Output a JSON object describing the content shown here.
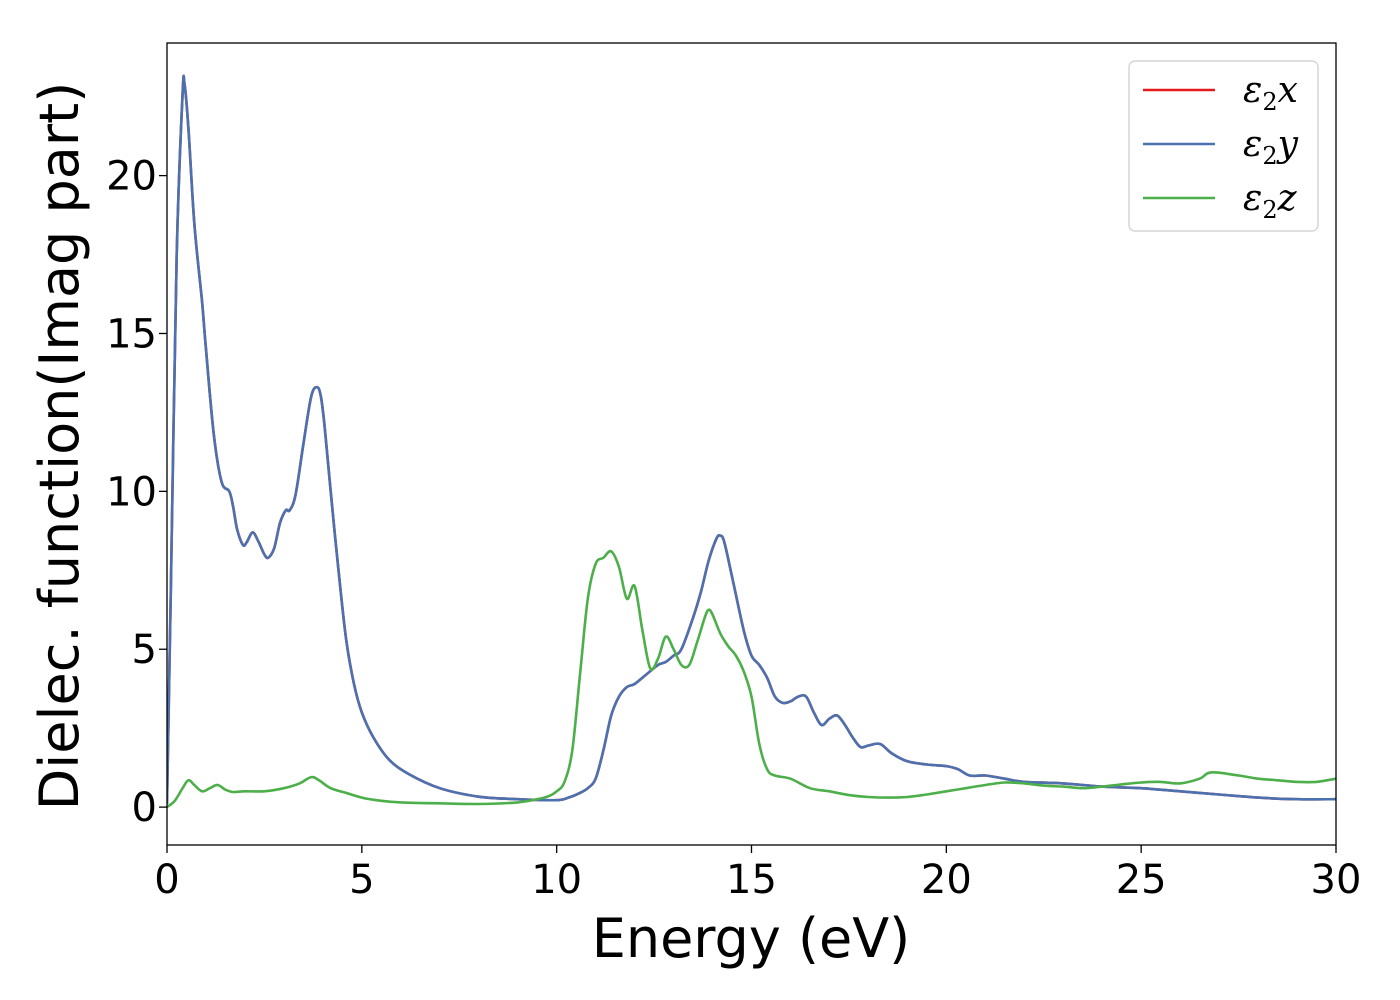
{
  "chart_data": {
    "type": "line",
    "title": "",
    "xlabel": "Energy (eV)",
    "ylabel": "Dielec. function(Imag part)",
    "xlim": [
      0,
      30
    ],
    "ylim": [
      -1.2,
      24.2
    ],
    "xticks": [
      0,
      5,
      10,
      15,
      20,
      25,
      30
    ],
    "yticks": [
      0,
      5,
      10,
      15,
      20
    ],
    "grid": false,
    "legend_position": "top-right",
    "series": [
      {
        "name": "ε2x",
        "color": "#e41a1c",
        "x": [
          0,
          0.1,
          0.25,
          0.4,
          0.45,
          0.55,
          0.7,
          0.9,
          1.0,
          1.2,
          1.4,
          1.6,
          1.7,
          1.8,
          1.95,
          2.05,
          2.2,
          2.35,
          2.5,
          2.6,
          2.75,
          2.9,
          3.05,
          3.15,
          3.3,
          3.5,
          3.7,
          3.85,
          3.95,
          4.05,
          4.2,
          4.4,
          4.6,
          4.8,
          5.0,
          5.3,
          5.7,
          6.2,
          7.0,
          8.0,
          9.0,
          10.0,
          10.3,
          10.6,
          10.8,
          11.0,
          11.2,
          11.4,
          11.6,
          11.8,
          12.0,
          12.3,
          12.6,
          12.8,
          13.0,
          13.2,
          13.5,
          13.7,
          13.9,
          14.1,
          14.2,
          14.3,
          14.5,
          14.8,
          15.0,
          15.2,
          15.4,
          15.6,
          15.8,
          16.0,
          16.2,
          16.4,
          16.6,
          16.8,
          17.0,
          17.2,
          17.4,
          17.6,
          17.8,
          18.0,
          18.3,
          18.6,
          19.0,
          19.5,
          20.0,
          20.3,
          20.6,
          21.0,
          21.5,
          22.0,
          23.0,
          24.0,
          25.0,
          26.0,
          27.0,
          28.0,
          29.0,
          30.0
        ],
        "y": [
          0.1,
          7.0,
          17.5,
          22.6,
          22.9,
          21.5,
          18.5,
          16.0,
          14.5,
          11.8,
          10.3,
          10.0,
          9.5,
          8.8,
          8.3,
          8.4,
          8.7,
          8.4,
          8.0,
          7.9,
          8.2,
          9.0,
          9.4,
          9.4,
          9.9,
          11.5,
          13.0,
          13.3,
          13.0,
          12.0,
          10.0,
          7.5,
          5.3,
          3.9,
          3.0,
          2.2,
          1.5,
          1.05,
          0.6,
          0.33,
          0.25,
          0.22,
          0.3,
          0.45,
          0.6,
          0.9,
          1.8,
          2.9,
          3.5,
          3.8,
          3.9,
          4.2,
          4.5,
          4.6,
          4.8,
          5.0,
          6.0,
          6.8,
          7.8,
          8.5,
          8.6,
          8.4,
          7.3,
          5.6,
          4.8,
          4.5,
          4.1,
          3.5,
          3.3,
          3.35,
          3.5,
          3.5,
          3.0,
          2.6,
          2.8,
          2.9,
          2.6,
          2.2,
          1.9,
          1.95,
          2.0,
          1.7,
          1.45,
          1.35,
          1.3,
          1.2,
          1.0,
          1.0,
          0.9,
          0.8,
          0.75,
          0.65,
          0.6,
          0.5,
          0.4,
          0.3,
          0.25,
          0.25
        ]
      },
      {
        "name": "ε2y",
        "color": "#4a72b0",
        "x": [
          0,
          0.1,
          0.25,
          0.4,
          0.45,
          0.55,
          0.7,
          0.9,
          1.0,
          1.2,
          1.4,
          1.6,
          1.7,
          1.8,
          1.95,
          2.05,
          2.2,
          2.35,
          2.5,
          2.6,
          2.75,
          2.9,
          3.05,
          3.15,
          3.3,
          3.5,
          3.7,
          3.85,
          3.95,
          4.05,
          4.2,
          4.4,
          4.6,
          4.8,
          5.0,
          5.3,
          5.7,
          6.2,
          7.0,
          8.0,
          9.0,
          10.0,
          10.3,
          10.6,
          10.8,
          11.0,
          11.2,
          11.4,
          11.6,
          11.8,
          12.0,
          12.3,
          12.6,
          12.8,
          13.0,
          13.2,
          13.5,
          13.7,
          13.9,
          14.1,
          14.2,
          14.3,
          14.5,
          14.8,
          15.0,
          15.2,
          15.4,
          15.6,
          15.8,
          16.0,
          16.2,
          16.4,
          16.6,
          16.8,
          17.0,
          17.2,
          17.4,
          17.6,
          17.8,
          18.0,
          18.3,
          18.6,
          19.0,
          19.5,
          20.0,
          20.3,
          20.6,
          21.0,
          21.5,
          22.0,
          23.0,
          24.0,
          25.0,
          26.0,
          27.0,
          28.0,
          29.0,
          30.0
        ],
        "y": [
          0.1,
          7.0,
          17.5,
          22.6,
          22.9,
          21.5,
          18.5,
          16.0,
          14.5,
          11.8,
          10.3,
          10.0,
          9.5,
          8.8,
          8.3,
          8.4,
          8.7,
          8.4,
          8.0,
          7.9,
          8.2,
          9.0,
          9.4,
          9.4,
          9.9,
          11.5,
          13.0,
          13.3,
          13.0,
          12.0,
          10.0,
          7.5,
          5.3,
          3.9,
          3.0,
          2.2,
          1.5,
          1.05,
          0.6,
          0.33,
          0.25,
          0.22,
          0.3,
          0.45,
          0.6,
          0.9,
          1.8,
          2.9,
          3.5,
          3.8,
          3.9,
          4.2,
          4.5,
          4.6,
          4.8,
          5.0,
          6.0,
          6.8,
          7.8,
          8.5,
          8.6,
          8.4,
          7.3,
          5.6,
          4.8,
          4.5,
          4.1,
          3.5,
          3.3,
          3.35,
          3.5,
          3.5,
          3.0,
          2.6,
          2.8,
          2.9,
          2.6,
          2.2,
          1.9,
          1.95,
          2.0,
          1.7,
          1.45,
          1.35,
          1.3,
          1.2,
          1.0,
          1.0,
          0.9,
          0.8,
          0.75,
          0.65,
          0.6,
          0.5,
          0.4,
          0.3,
          0.25,
          0.25
        ]
      },
      {
        "name": "ε2z",
        "color": "#4daf4a",
        "x": [
          0,
          0.2,
          0.4,
          0.55,
          0.7,
          0.9,
          1.1,
          1.3,
          1.5,
          1.7,
          2.0,
          2.5,
          3.0,
          3.4,
          3.7,
          3.9,
          4.2,
          4.6,
          5.0,
          5.5,
          6.0,
          7.0,
          8.0,
          9.0,
          9.5,
          9.8,
          10.0,
          10.2,
          10.4,
          10.6,
          10.8,
          11.0,
          11.2,
          11.4,
          11.6,
          11.8,
          12.0,
          12.2,
          12.4,
          12.6,
          12.8,
          13.0,
          13.2,
          13.4,
          13.6,
          13.8,
          13.9,
          14.0,
          14.2,
          14.4,
          14.6,
          14.8,
          15.0,
          15.2,
          15.4,
          15.6,
          16.0,
          16.5,
          17.0,
          17.5,
          18.0,
          18.5,
          19.0,
          19.5,
          20.0,
          20.5,
          21.0,
          21.5,
          22.0,
          22.5,
          23.0,
          23.5,
          24.0,
          24.5,
          25.0,
          25.5,
          26.0,
          26.5,
          26.8,
          27.5,
          28.0,
          28.5,
          29.0,
          29.5,
          30.0
        ],
        "y": [
          0.0,
          0.2,
          0.6,
          0.85,
          0.7,
          0.5,
          0.6,
          0.7,
          0.55,
          0.48,
          0.5,
          0.5,
          0.6,
          0.75,
          0.95,
          0.85,
          0.6,
          0.45,
          0.3,
          0.2,
          0.15,
          0.12,
          0.1,
          0.15,
          0.25,
          0.35,
          0.5,
          0.8,
          1.8,
          4.2,
          6.6,
          7.7,
          7.9,
          8.1,
          7.6,
          6.6,
          7.0,
          5.6,
          4.4,
          4.7,
          5.4,
          5.0,
          4.5,
          4.5,
          5.2,
          6.0,
          6.25,
          6.1,
          5.5,
          5.1,
          4.8,
          4.3,
          3.5,
          2.0,
          1.2,
          1.0,
          0.9,
          0.6,
          0.5,
          0.38,
          0.32,
          0.3,
          0.32,
          0.4,
          0.5,
          0.6,
          0.7,
          0.78,
          0.75,
          0.68,
          0.65,
          0.6,
          0.65,
          0.72,
          0.78,
          0.8,
          0.75,
          0.9,
          1.1,
          1.0,
          0.9,
          0.85,
          0.8,
          0.8,
          0.9
        ]
      }
    ]
  }
}
